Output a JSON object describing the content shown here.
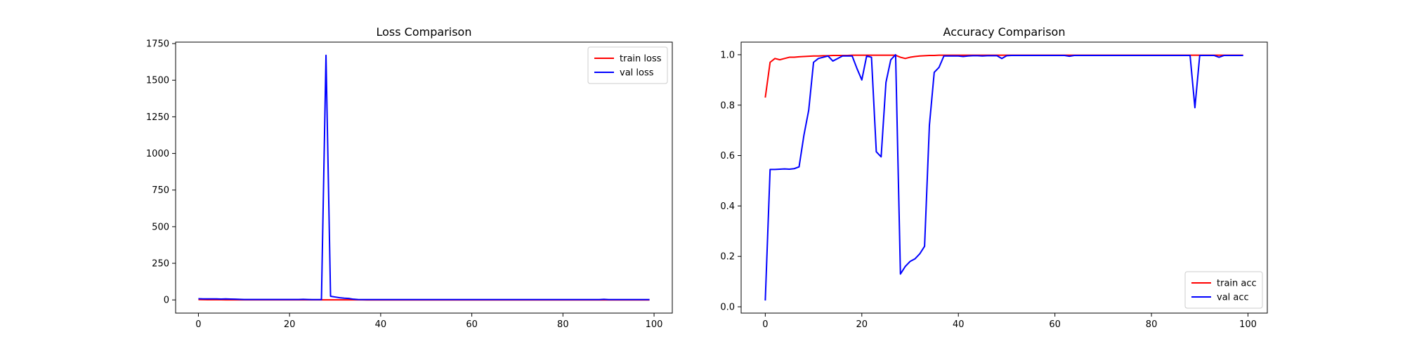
{
  "chart_data": [
    {
      "type": "line",
      "title": "Loss Comparison",
      "xlim": [
        -5,
        104
      ],
      "ylim": [
        -90,
        1760
      ],
      "xticks": [
        0,
        20,
        40,
        60,
        80,
        100
      ],
      "yticks": [
        0,
        250,
        500,
        750,
        1000,
        1250,
        1500,
        1750
      ],
      "legend": "top-right",
      "grid": false,
      "series": [
        {
          "name": "train loss",
          "color": "#ff0000",
          "x": [
            0,
            1,
            2,
            3,
            4,
            5,
            6,
            7,
            8,
            9,
            10,
            11,
            12,
            13,
            14,
            15,
            16,
            17,
            18,
            19,
            20,
            21,
            22,
            23,
            24,
            25,
            26,
            27,
            28,
            29,
            30,
            31,
            32,
            33,
            34,
            35,
            36,
            37,
            38,
            39,
            40,
            41,
            42,
            43,
            44,
            45,
            46,
            47,
            48,
            49,
            50,
            51,
            52,
            53,
            54,
            55,
            56,
            57,
            58,
            59,
            60,
            61,
            62,
            63,
            64,
            65,
            66,
            67,
            68,
            69,
            70,
            71,
            72,
            73,
            74,
            75,
            76,
            77,
            78,
            79,
            80,
            81,
            82,
            83,
            84,
            85,
            86,
            87,
            88,
            89,
            90,
            91,
            92,
            93,
            94,
            95,
            96,
            97,
            98,
            99
          ],
          "y": [
            2,
            1.5,
            1.2,
            1,
            0.9,
            0.8,
            0.7,
            0.6,
            0.5,
            0.5,
            0.4,
            0.4,
            0.3,
            0.3,
            0.3,
            0.3,
            0.2,
            0.2,
            0.2,
            0.2,
            0.2,
            0.2,
            0.2,
            0.2,
            0.2,
            0.2,
            0.2,
            0.2,
            0.2,
            0.2,
            0.2,
            0.2,
            0.2,
            0.2,
            0.2,
            0.2,
            0.2,
            0.1,
            0.1,
            0.1,
            0.1,
            0.1,
            0.1,
            0.1,
            0.1,
            0.1,
            0.1,
            0.1,
            0.1,
            0.1,
            0.1,
            0.1,
            0.1,
            0.1,
            0.1,
            0.1,
            0.1,
            0.1,
            0.1,
            0.1,
            0.1,
            0.1,
            0.1,
            0.1,
            0.1,
            0.1,
            0.1,
            0.1,
            0.1,
            0.1,
            0.1,
            0.1,
            0.1,
            0.1,
            0.1,
            0.1,
            0.1,
            0.1,
            0.1,
            0.1,
            0.1,
            0.1,
            0.1,
            0.1,
            0.1,
            0.1,
            0.1,
            0.1,
            0.1,
            0.1,
            0.1,
            0.1,
            0.1,
            0.1,
            0.1,
            0.1,
            0.1,
            0.1,
            0.1,
            0.1
          ]
        },
        {
          "name": "val loss",
          "color": "#0000ff",
          "x": [
            0,
            1,
            2,
            3,
            4,
            5,
            6,
            7,
            8,
            9,
            10,
            11,
            12,
            13,
            14,
            15,
            16,
            17,
            18,
            19,
            20,
            21,
            22,
            23,
            24,
            25,
            26,
            27,
            28,
            29,
            30,
            31,
            32,
            33,
            34,
            35,
            36,
            37,
            38,
            39,
            40,
            41,
            42,
            43,
            44,
            45,
            46,
            47,
            48,
            49,
            50,
            51,
            52,
            53,
            54,
            55,
            56,
            57,
            58,
            59,
            60,
            61,
            62,
            63,
            64,
            65,
            66,
            67,
            68,
            69,
            70,
            71,
            72,
            73,
            74,
            75,
            76,
            77,
            78,
            79,
            80,
            81,
            82,
            83,
            84,
            85,
            86,
            87,
            88,
            89,
            90,
            91,
            92,
            93,
            94,
            95,
            96,
            97,
            98,
            99
          ],
          "y": [
            8,
            7,
            7,
            7,
            7,
            6,
            7,
            6,
            5,
            4,
            3,
            3,
            3,
            3,
            3,
            3,
            3,
            3,
            3,
            3,
            3,
            3,
            3,
            4,
            3,
            2,
            2,
            2,
            1670,
            25,
            20,
            15,
            12,
            10,
            5,
            3,
            2,
            2,
            2,
            2,
            2,
            2,
            2,
            2,
            2,
            2,
            2,
            2,
            2,
            2,
            2,
            2,
            2,
            2,
            2,
            2,
            2,
            2,
            2,
            2,
            2,
            2,
            2,
            2,
            2,
            2,
            2,
            2,
            2,
            2,
            2,
            2,
            2,
            2,
            2,
            2,
            2,
            2,
            2,
            2,
            2,
            2,
            2,
            2,
            2,
            2,
            2,
            2,
            2,
            4,
            2,
            2,
            2,
            2,
            2,
            2,
            2,
            2,
            2,
            2
          ]
        }
      ]
    },
    {
      "type": "line",
      "title": "Accuracy Comparison",
      "xlim": [
        -5,
        104
      ],
      "ylim": [
        -0.025,
        1.05
      ],
      "xticks": [
        0,
        20,
        40,
        60,
        80,
        100
      ],
      "yticks": [
        0.0,
        0.2,
        0.4,
        0.6,
        0.8,
        1.0
      ],
      "ytick_labels": [
        "0.0",
        "0.2",
        "0.4",
        "0.6",
        "0.8",
        "1.0"
      ],
      "legend": "bottom-right",
      "grid": false,
      "series": [
        {
          "name": "train acc",
          "color": "#ff0000",
          "x": [
            0,
            1,
            2,
            3,
            4,
            5,
            6,
            7,
            8,
            9,
            10,
            11,
            12,
            13,
            14,
            15,
            16,
            17,
            18,
            19,
            20,
            21,
            22,
            23,
            24,
            25,
            26,
            27,
            28,
            29,
            30,
            31,
            32,
            33,
            34,
            35,
            36,
            37,
            38,
            39,
            40,
            41,
            42,
            43,
            44,
            45,
            46,
            47,
            48,
            49,
            50,
            51,
            52,
            53,
            54,
            55,
            56,
            57,
            58,
            59,
            60,
            61,
            62,
            63,
            64,
            65,
            66,
            67,
            68,
            69,
            70,
            71,
            72,
            73,
            74,
            75,
            76,
            77,
            78,
            79,
            80,
            81,
            82,
            83,
            84,
            85,
            86,
            87,
            88,
            89,
            90,
            91,
            92,
            93,
            94,
            95,
            96,
            97,
            98,
            99
          ],
          "y": [
            0.83,
            0.97,
            0.985,
            0.98,
            0.985,
            0.99,
            0.99,
            0.992,
            0.993,
            0.994,
            0.995,
            0.995,
            0.996,
            0.996,
            0.997,
            0.997,
            0.997,
            0.997,
            0.998,
            0.998,
            0.998,
            0.998,
            0.998,
            0.998,
            0.998,
            0.998,
            0.998,
            0.998,
            0.99,
            0.985,
            0.99,
            0.993,
            0.995,
            0.996,
            0.997,
            0.997,
            0.998,
            0.998,
            0.998,
            0.998,
            0.998,
            0.998,
            0.998,
            0.998,
            0.998,
            0.998,
            0.998,
            0.998,
            0.998,
            0.998,
            0.998,
            0.998,
            0.998,
            0.998,
            0.998,
            0.998,
            0.998,
            0.998,
            0.998,
            0.998,
            0.998,
            0.998,
            0.998,
            0.998,
            0.998,
            0.998,
            0.998,
            0.998,
            0.998,
            0.998,
            0.998,
            0.998,
            0.998,
            0.998,
            0.998,
            0.998,
            0.998,
            0.998,
            0.998,
            0.998,
            0.998,
            0.998,
            0.998,
            0.998,
            0.998,
            0.998,
            0.998,
            0.998,
            0.998,
            0.998,
            0.998,
            0.998,
            0.998,
            0.998,
            0.998,
            0.998,
            0.998,
            0.998,
            0.998,
            0.998
          ]
        },
        {
          "name": "val acc",
          "color": "#0000ff",
          "x": [
            0,
            1,
            2,
            3,
            4,
            5,
            6,
            7,
            8,
            9,
            10,
            11,
            12,
            13,
            14,
            15,
            16,
            17,
            18,
            19,
            20,
            21,
            22,
            23,
            24,
            25,
            26,
            27,
            28,
            29,
            30,
            31,
            32,
            33,
            34,
            35,
            36,
            37,
            38,
            39,
            40,
            41,
            42,
            43,
            44,
            45,
            46,
            47,
            48,
            49,
            50,
            51,
            52,
            53,
            54,
            55,
            56,
            57,
            58,
            59,
            60,
            61,
            62,
            63,
            64,
            65,
            66,
            67,
            68,
            69,
            70,
            71,
            72,
            73,
            74,
            75,
            76,
            77,
            78,
            79,
            80,
            81,
            82,
            83,
            84,
            85,
            86,
            87,
            88,
            89,
            90,
            91,
            92,
            93,
            94,
            95,
            96,
            97,
            98,
            99
          ],
          "y": [
            0.025,
            0.545,
            0.545,
            0.546,
            0.547,
            0.546,
            0.548,
            0.555,
            0.68,
            0.78,
            0.97,
            0.985,
            0.99,
            0.995,
            0.975,
            0.985,
            0.995,
            0.995,
            0.995,
            0.945,
            0.9,
            0.995,
            0.99,
            0.615,
            0.595,
            0.89,
            0.98,
            1.0,
            0.13,
            0.16,
            0.18,
            0.19,
            0.21,
            0.24,
            0.72,
            0.93,
            0.95,
            0.995,
            0.995,
            0.995,
            0.995,
            0.993,
            0.995,
            0.996,
            0.996,
            0.995,
            0.996,
            0.996,
            0.996,
            0.985,
            0.996,
            0.997,
            0.997,
            0.997,
            0.997,
            0.997,
            0.997,
            0.997,
            0.997,
            0.997,
            0.997,
            0.997,
            0.997,
            0.994,
            0.997,
            0.997,
            0.997,
            0.997,
            0.997,
            0.997,
            0.997,
            0.997,
            0.997,
            0.997,
            0.997,
            0.997,
            0.997,
            0.997,
            0.997,
            0.997,
            0.997,
            0.997,
            0.997,
            0.997,
            0.997,
            0.997,
            0.997,
            0.997,
            0.997,
            0.79,
            0.997,
            0.997,
            0.997,
            0.997,
            0.99,
            0.997,
            0.997,
            0.997,
            0.997,
            0.997
          ]
        }
      ]
    }
  ]
}
